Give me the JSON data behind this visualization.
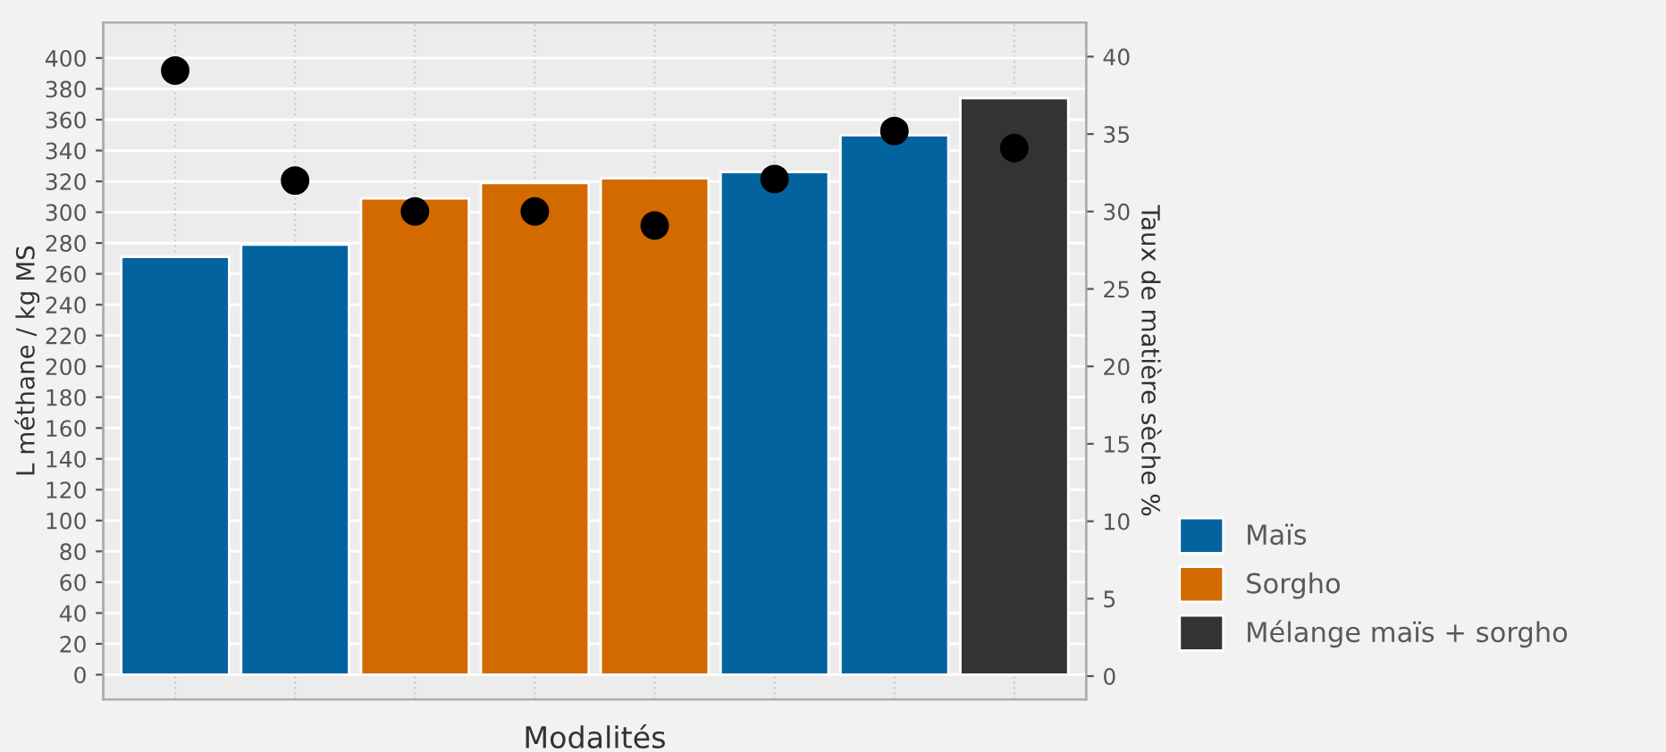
{
  "chart_data": {
    "type": "bar",
    "xlabel": "Modalités",
    "ylabel": "L méthane / kg MS",
    "y2label": "Taux de matière sèche %",
    "categories": [
      null,
      null,
      null,
      null,
      null,
      null,
      null,
      null
    ],
    "series": [
      {
        "name": "Maïs",
        "color": "#03639f",
        "values": [
          271,
          279,
          null,
          null,
          null,
          326,
          350,
          null
        ]
      },
      {
        "name": "Sorgho",
        "color": "#d26a00",
        "values": [
          null,
          null,
          309,
          319,
          322,
          null,
          null,
          null
        ]
      },
      {
        "name": "Mélange maïs + sorgho",
        "color": "#333333",
        "values": [
          null,
          null,
          null,
          null,
          null,
          null,
          null,
          374
        ]
      },
      {
        "type": "scatter",
        "axis": "y2",
        "color": "#000000",
        "marker": "circle",
        "values": [
          39.1,
          32.0,
          30.0,
          30.0,
          29.1,
          32.1,
          35.2,
          34.1
        ]
      }
    ],
    "ylim": [
      -16,
      423
    ],
    "yticks": [
      0,
      20,
      40,
      60,
      80,
      100,
      120,
      140,
      160,
      180,
      200,
      220,
      240,
      260,
      280,
      300,
      320,
      340,
      360,
      380,
      400
    ],
    "y2lim": [
      -1.5,
      42.2
    ],
    "y2ticks": [
      0,
      5,
      10,
      15,
      20,
      25,
      30,
      35,
      40
    ],
    "grid": true,
    "legend": "right"
  }
}
